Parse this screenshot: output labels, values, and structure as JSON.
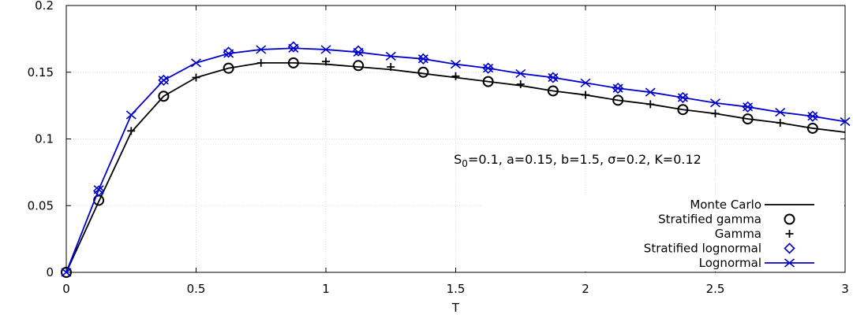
{
  "chart_data": {
    "type": "line",
    "title": "",
    "xlabel": "T",
    "ylabel": "",
    "xlim": [
      0,
      3
    ],
    "ylim": [
      0,
      0.2
    ],
    "grid": true,
    "legend_position": "bottom-right",
    "x_ticks": [
      0,
      0.5,
      1,
      1.5,
      2,
      2.5,
      3
    ],
    "x_tick_labels": [
      "0",
      "0.5",
      "1",
      "1.5",
      "2",
      "2.5",
      "3"
    ],
    "y_ticks": [
      0,
      0.05,
      0.1,
      0.15,
      0.2
    ],
    "y_tick_labels": [
      "0",
      "0.05",
      "0.1",
      "0.15",
      "0.2"
    ],
    "annotation": {
      "prefix": "S",
      "subscript": "0",
      "suffix": "=0.1, a=0.15, b=1.5, σ=0.2, K=0.12"
    },
    "series": [
      {
        "name": "Monte Carlo",
        "style": "line",
        "color": "#000000",
        "x": [
          0,
          0.125,
          0.25,
          0.375,
          0.5,
          0.625,
          0.75,
          0.875,
          1.0,
          1.125,
          1.25,
          1.375,
          1.5,
          1.625,
          1.75,
          1.875,
          2.0,
          2.125,
          2.25,
          2.375,
          2.5,
          2.625,
          2.75,
          2.875,
          3.0
        ],
        "y": [
          0,
          0.053,
          0.105,
          0.132,
          0.146,
          0.153,
          0.157,
          0.157,
          0.156,
          0.154,
          0.152,
          0.149,
          0.146,
          0.143,
          0.14,
          0.136,
          0.133,
          0.129,
          0.126,
          0.122,
          0.119,
          0.115,
          0.112,
          0.108,
          0.105
        ]
      },
      {
        "name": "Stratified gamma",
        "style": "marker-circle",
        "color": "#000000",
        "x": [
          0,
          0.125,
          0.375,
          0.625,
          0.875,
          1.125,
          1.375,
          1.625,
          1.875,
          2.125,
          2.375,
          2.625,
          2.875
        ],
        "y": [
          0,
          0.054,
          0.132,
          0.153,
          0.157,
          0.155,
          0.15,
          0.143,
          0.136,
          0.129,
          0.122,
          0.115,
          0.108
        ]
      },
      {
        "name": "Gamma",
        "style": "marker-plus",
        "color": "#000000",
        "x": [
          0.25,
          0.5,
          0.75,
          1.0,
          1.25,
          1.5,
          1.75,
          2.0,
          2.25,
          2.5,
          2.75
        ],
        "y": [
          0.106,
          0.146,
          0.157,
          0.158,
          0.154,
          0.147,
          0.141,
          0.133,
          0.126,
          0.119,
          0.112
        ]
      },
      {
        "name": "Stratified lognormal",
        "style": "marker-diamond",
        "color": "#0000cc",
        "x": [
          0.125,
          0.375,
          0.625,
          0.875,
          1.125,
          1.375,
          1.625,
          1.875,
          2.125,
          2.375,
          2.625,
          2.875
        ],
        "y": [
          0.061,
          0.144,
          0.165,
          0.169,
          0.166,
          0.16,
          0.153,
          0.146,
          0.138,
          0.131,
          0.124,
          0.117
        ]
      },
      {
        "name": "Lognormal",
        "style": "line-cross",
        "color": "#0000cc",
        "x": [
          0,
          0.125,
          0.25,
          0.375,
          0.5,
          0.625,
          0.75,
          0.875,
          1.0,
          1.125,
          1.25,
          1.375,
          1.5,
          1.625,
          1.75,
          1.875,
          2.0,
          2.125,
          2.25,
          2.375,
          2.5,
          2.625,
          2.75,
          2.875,
          3.0
        ],
        "y": [
          0,
          0.062,
          0.118,
          0.144,
          0.157,
          0.164,
          0.167,
          0.168,
          0.167,
          0.165,
          0.162,
          0.16,
          0.156,
          0.153,
          0.149,
          0.146,
          0.142,
          0.138,
          0.135,
          0.131,
          0.127,
          0.124,
          0.12,
          0.117,
          0.113
        ]
      }
    ]
  }
}
